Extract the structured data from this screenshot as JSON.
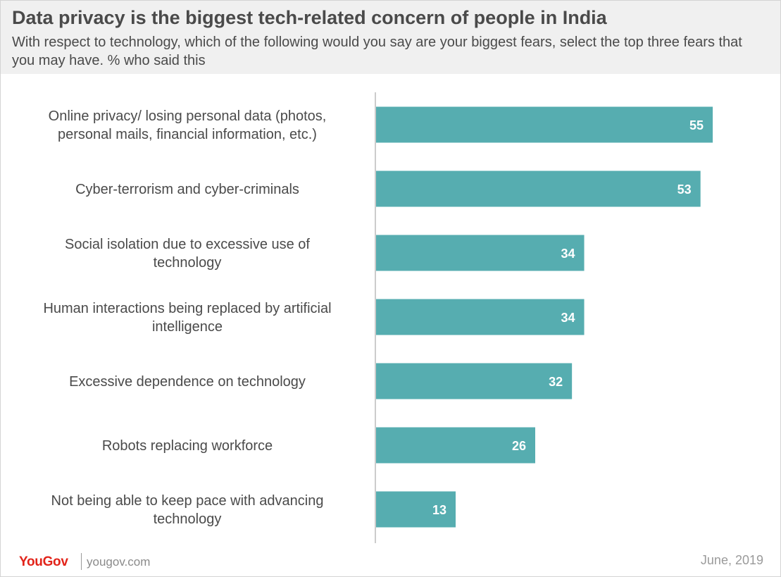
{
  "header": {
    "title": "Data privacy is the biggest tech-related concern of people in India",
    "subtitle": "With respect to technology, which of the following would you say are your biggest fears, select the top three fears that you may have. % who said this"
  },
  "chart_data": {
    "type": "bar",
    "orientation": "horizontal",
    "categories": [
      [
        "Online privacy/ losing personal data (photos,",
        "personal mails, financial information, etc.)"
      ],
      [
        "Cyber-terrorism and cyber-criminals"
      ],
      [
        "Social isolation due to excessive use of",
        "technology"
      ],
      [
        "Human interactions being replaced by artificial",
        "intelligence"
      ],
      [
        "Excessive dependence on technology"
      ],
      [
        "Robots replacing workforce"
      ],
      [
        "Not being able to keep pace with advancing",
        "technology"
      ]
    ],
    "values": [
      55,
      53,
      34,
      34,
      32,
      26,
      13
    ],
    "bar_color": "#56adb0",
    "label_color": "#ffffff",
    "xlim": [
      0,
      65
    ],
    "grid": false,
    "axis_line": true
  },
  "footer": {
    "brand": "YouGov",
    "site": "yougov.com",
    "date": "June, 2019"
  },
  "colors": {
    "header_bg": "#f0f0f0",
    "text": "#4a4a4a",
    "brand": "#e2241a",
    "footer_text": "#8a8a8a"
  }
}
